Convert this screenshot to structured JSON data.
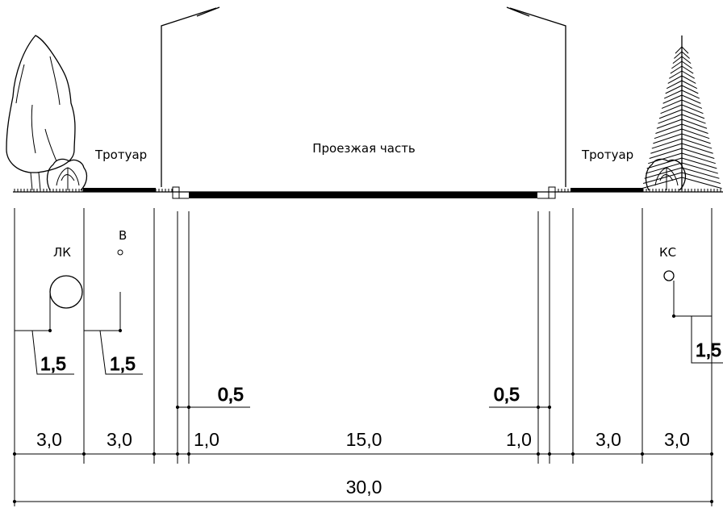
{
  "labels": {
    "sidewalk_left": "Тротуар",
    "roadway": "Проезжая часть",
    "sidewalk_right": "Тротуар"
  },
  "utilities": {
    "lk": "ЛК",
    "v": "В",
    "ks": "КС"
  },
  "offsets": {
    "lk": "1,5",
    "v": "1,5",
    "ks": "1,5",
    "curb_left": "0,5",
    "curb_right": "0,5"
  },
  "widths": [
    "3,0",
    "3,0",
    "1,0",
    "15,0",
    "1,0",
    "3,0",
    "3,0"
  ],
  "total": "30,0"
}
